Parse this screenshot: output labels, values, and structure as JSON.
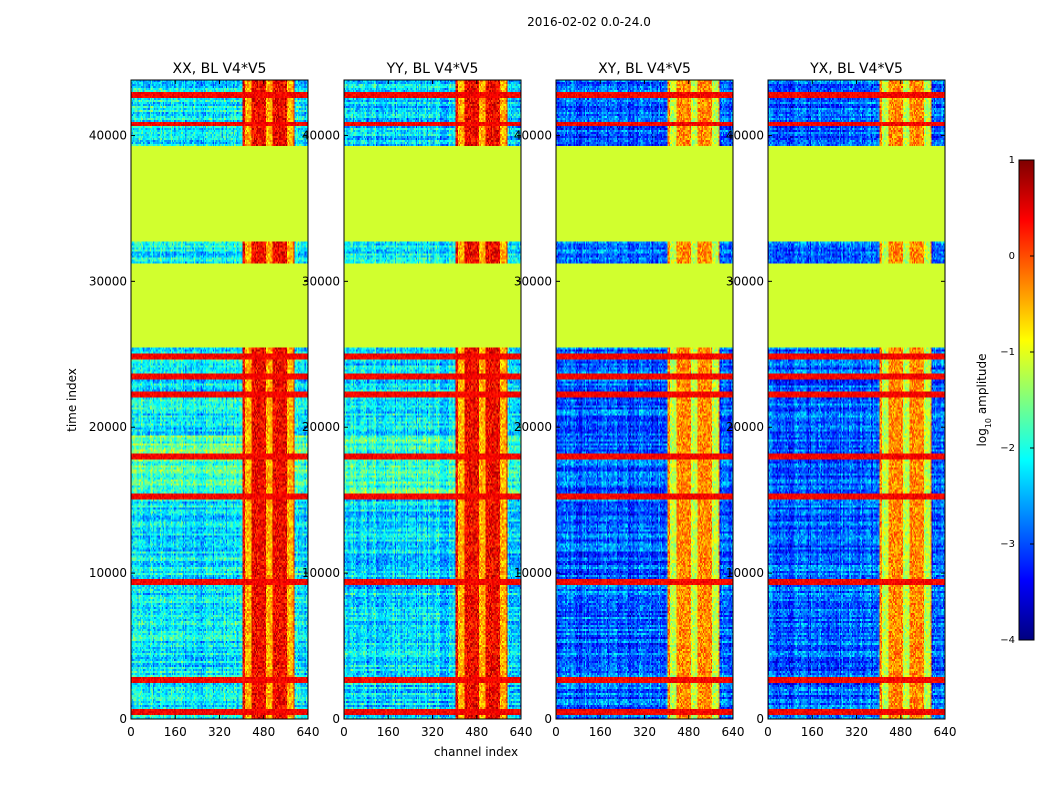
{
  "figure": {
    "suptitle": "2016-02-02 0.0-24.0"
  },
  "colors": {
    "jet": [
      "#00007f",
      "#0000ff",
      "#007fff",
      "#00ffff",
      "#7fff7f",
      "#ffff00",
      "#ff7f00",
      "#ff0000",
      "#7f0000"
    ],
    "axes": "#000000",
    "background": "#ffffff"
  },
  "chart_data": {
    "type": "heatmap",
    "xlabel": "channel index",
    "ylabel": "time index",
    "xlim": [
      0,
      640
    ],
    "ylim": [
      0,
      43800
    ],
    "xticks": [
      0,
      160,
      320,
      480,
      640
    ],
    "yticks": [
      0,
      10000,
      20000,
      30000,
      40000
    ],
    "colorbar": {
      "label_prefix": "log",
      "label_sub": "10",
      "label_suffix": " amplitude",
      "range": [
        -4,
        1
      ],
      "ticks": [
        -4,
        -3,
        -2,
        -1,
        0,
        1
      ],
      "tick_labels": [
        "−4",
        "−3",
        "−2",
        "−1",
        "0",
        "1"
      ]
    },
    "panels": [
      {
        "title": "XX, BL V4*V5",
        "high_band_value": 0.4,
        "noise_value": -2.2
      },
      {
        "title": "YY, BL V4*V5",
        "high_band_value": 0.4,
        "noise_value": -2.3
      },
      {
        "title": "XY, BL V4*V5",
        "high_band_value": -0.3,
        "noise_value": -2.9
      },
      {
        "title": "YX, BL V4*V5",
        "high_band_value": -0.3,
        "noise_value": -2.9
      }
    ],
    "flagged_time_ranges": [
      [
        25500,
        31200
      ],
      [
        32700,
        39300
      ]
    ],
    "flagged_value": -1.1,
    "high_amplitude_channels": [
      405,
      590
    ],
    "rfi_time_rows": [
      500,
      2700,
      9400,
      15300,
      18000,
      22200,
      23500,
      24800,
      40800,
      42800
    ]
  }
}
